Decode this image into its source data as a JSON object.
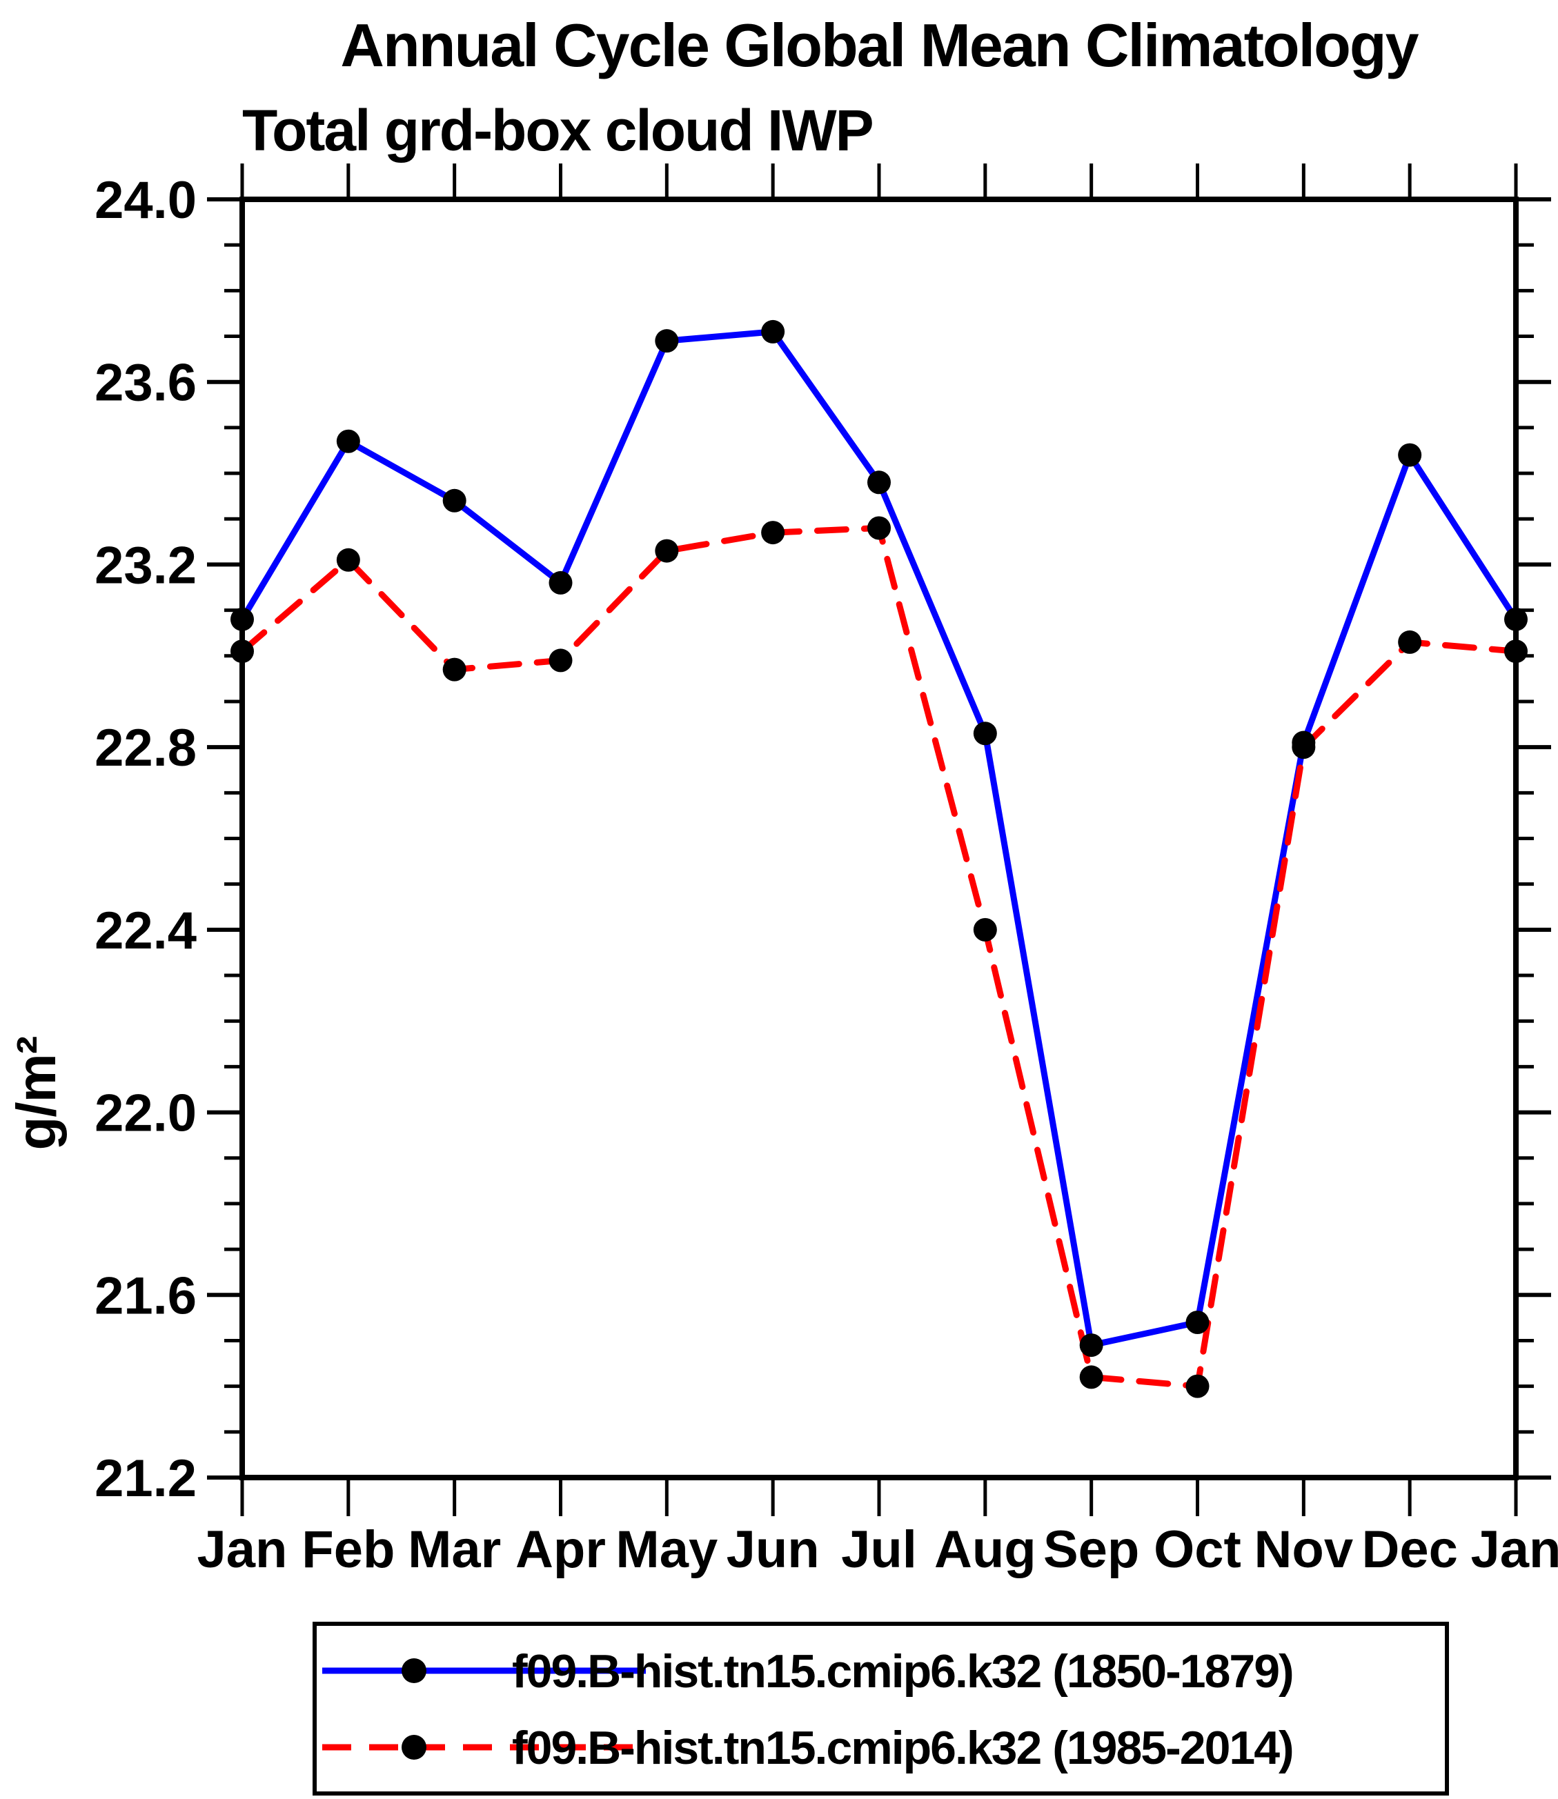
{
  "title": "Annual Cycle Global Mean Climatology",
  "subtitle": "Total grd-box cloud IWP",
  "ylabel": "g/m²",
  "colors": {
    "series1": "#0000ff",
    "series2": "#ff0000",
    "marker": "#000000",
    "axis": "#000000",
    "background": "#ffffff"
  },
  "chart_data": {
    "type": "line",
    "title": "Annual Cycle Global Mean Climatology",
    "subtitle": "Total grd-box cloud IWP",
    "xlabel": "",
    "ylabel": "g/m²",
    "categories": [
      "Jan",
      "Feb",
      "Mar",
      "Apr",
      "May",
      "Jun",
      "Jul",
      "Aug",
      "Sep",
      "Oct",
      "Nov",
      "Dec",
      "Jan"
    ],
    "series": [
      {
        "name": "f09.B-hist.tn15.cmip6.k32 (1850-1879)",
        "color": "#0000ff",
        "line_style": "solid",
        "marker": "circle",
        "marker_color": "#000000",
        "values": [
          23.08,
          23.47,
          23.34,
          23.16,
          23.69,
          23.71,
          23.38,
          22.83,
          21.49,
          21.54,
          22.81,
          23.44,
          23.08
        ]
      },
      {
        "name": "f09.B-hist.tn15.cmip6.k32 (1985-2014)",
        "color": "#ff0000",
        "line_style": "dashed",
        "marker": "circle",
        "marker_color": "#000000",
        "values": [
          23.01,
          23.21,
          22.97,
          22.99,
          23.23,
          23.27,
          23.28,
          22.4,
          21.42,
          21.4,
          22.8,
          23.03,
          23.01
        ]
      }
    ],
    "ylim": [
      21.2,
      24.0
    ],
    "y_major_ticks": [
      21.2,
      21.6,
      22.0,
      22.4,
      22.8,
      23.2,
      23.6,
      24.0
    ],
    "y_minor_step": 0.1,
    "grid": false,
    "legend_position": "bottom"
  }
}
